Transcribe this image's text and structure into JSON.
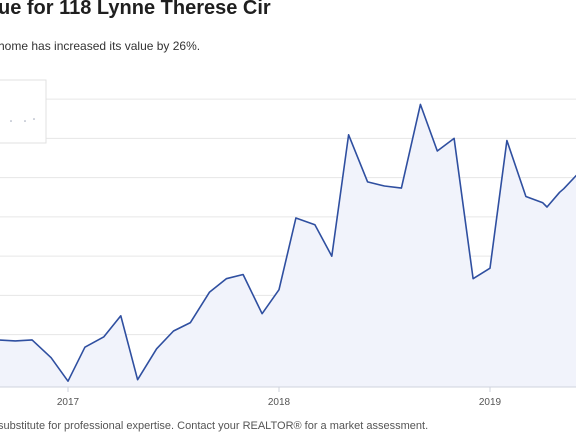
{
  "header": {
    "title": "ue for 118 Lynne Therese Cir",
    "subtitle": "home has increased its value by 26%."
  },
  "chart_data": {
    "type": "area",
    "title": "",
    "xlabel": "",
    "ylabel": "",
    "x_ticks": [
      "2017",
      "2018",
      "2019"
    ],
    "grid": true,
    "legend": "top-left",
    "line_color": "#2f4fa0",
    "fill_color": "#f1f3fb",
    "x": [
      2016.42,
      2016.58,
      2016.66,
      2016.75,
      2016.83,
      2016.92,
      2017.0,
      2017.08,
      2017.17,
      2017.25,
      2017.33,
      2017.42,
      2017.5,
      2017.58,
      2017.67,
      2017.75,
      2017.83,
      2017.92,
      2018.0,
      2018.08,
      2018.17,
      2018.25,
      2018.33,
      2018.42,
      2018.5,
      2018.58,
      2018.67,
      2018.75,
      2018.83,
      2018.92,
      2019.0,
      2019.08,
      2019.17,
      2019.25,
      2019.27,
      2019.33,
      2019.35,
      2019.42
    ],
    "values": [
      59,
      59,
      59,
      58.8,
      59,
      55.6,
      51.1,
      57.6,
      59.6,
      63.6,
      51.4,
      57.3,
      60.7,
      62.3,
      68.1,
      70.7,
      71.5,
      64,
      68.6,
      82.3,
      81,
      75,
      98.2,
      89.2,
      88.4,
      88,
      104,
      95.1,
      97.5,
      70.7,
      72.7,
      97.1,
      86.4,
      85.2,
      84.4,
      87.2,
      87.9,
      90.9
    ]
  },
  "footer": {
    "disclaimer": "substitute for professional expertise. Contact your REALTOR® for a market assessment."
  }
}
